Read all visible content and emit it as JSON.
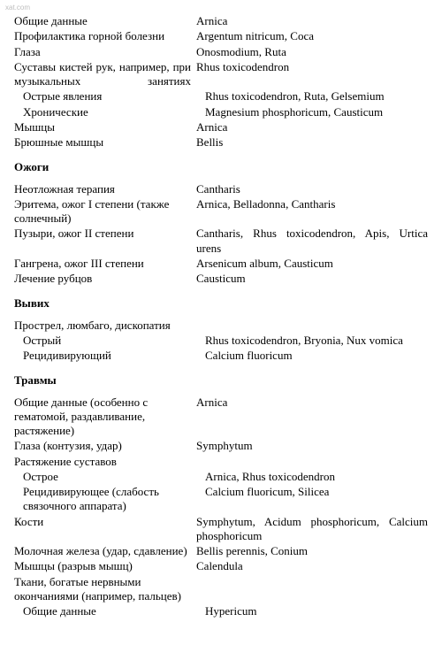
{
  "watermark": "xat.com",
  "sections": [
    {
      "rows": [
        {
          "left": "Общие данные",
          "right": "Arnica"
        },
        {
          "left": "Профилактика горной болезни",
          "right": "Argentum nitricum, Coca"
        },
        {
          "left": "Глаза",
          "right": "Onosmodium, Ruta"
        },
        {
          "left": "Суставы кистей рук, например, при музыкальных занятиях",
          "right": "Rhus toxicodendron",
          "justifyLeft": true
        },
        {
          "left": "Острые явления",
          "right": "Rhus toxicodendron, Ruta, Gelsemium",
          "indent": 1
        },
        {
          "left": "Хронические",
          "right": "Magnesium phosphoricum, Causticum",
          "indent": 1
        },
        {
          "left": "Мышцы",
          "right": "Arnica"
        },
        {
          "left": "Брюшные мышцы",
          "right": "Bellis"
        }
      ]
    },
    {
      "heading": "Ожоги",
      "rows": [
        {
          "left": "Неотложная терапия",
          "right": "Cantharis"
        },
        {
          "left": "Эритема, ожог I степени (также солнечный)",
          "right": "Arnica, Belladonna, Cantharis"
        },
        {
          "left": "Пузыри, ожог II степени",
          "right": "Cantharis, Rhus toxicodendron, Apis, Urtica urens",
          "justifyRight": true
        },
        {
          "left": "Гангрена, ожог III степени",
          "right": "Arsenicum album, Causticum"
        },
        {
          "left": "Лечение рубцов",
          "right": "Causticum"
        }
      ]
    },
    {
      "heading": "Вывих",
      "rows": [
        {
          "left": "Прострел, люмбаго, дископатия",
          "right": ""
        },
        {
          "left": "Острый",
          "right": "Rhus toxicodendron, Bryonia, Nux vomica",
          "indent": 1
        },
        {
          "left": "Рецидивирующий",
          "right": "Calcium fluoricum",
          "indent": 1
        }
      ]
    },
    {
      "heading": "Травмы",
      "rows": [
        {
          "left": "Общие данные (особенно с гематомой, раздавливание, растяжение)",
          "right": "Arnica"
        },
        {
          "left": "Глаза (контузия, удар)",
          "right": "Symphytum"
        },
        {
          "left": "Растяжение суставов",
          "right": ""
        },
        {
          "left": "Острое",
          "right": "Arnica, Rhus toxicodendron",
          "indent": 1
        },
        {
          "left": "Рецидивирующее (слабость связочного аппарата)",
          "right": "Calcium fluoricum, Silicea",
          "indent": 1
        },
        {
          "left": "Кости",
          "right": "Symphytum, Acidum phosphoricum, Calcium phosphoricum",
          "justifyRight": true
        },
        {
          "left": "Молочная железа (удар, сдавление)",
          "right": "Bellis perennis, Conium"
        },
        {
          "left": "Мышцы (разрыв мышц)",
          "right": "Calendula"
        },
        {
          "left": "Ткани, богатые нервными окончаниями (например, пальцев)",
          "right": ""
        },
        {
          "left": "Общие данные",
          "right": "Hypericum",
          "indent": 1
        }
      ]
    }
  ]
}
